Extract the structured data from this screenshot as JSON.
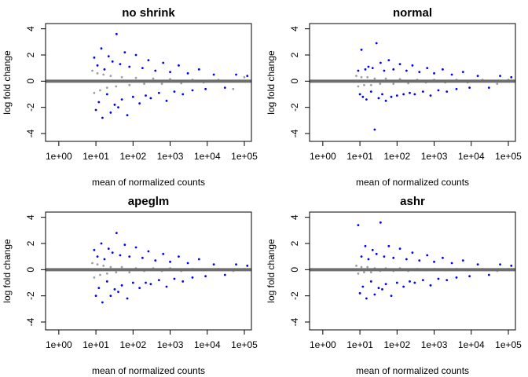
{
  "chart_data": [
    {
      "type": "scatter",
      "title": "no shrink",
      "xlabel": "mean of normalized counts",
      "ylabel": "log fold change",
      "xlog": true,
      "xlim": [
        0.44,
        155000
      ],
      "ylim": [
        -4.6,
        4.4
      ],
      "xticks": [
        {
          "value": 1,
          "label": "1e+00"
        },
        {
          "value": 10,
          "label": "1e+01"
        },
        {
          "value": 100,
          "label": "1e+02"
        },
        {
          "value": 1000,
          "label": "1e+03"
        },
        {
          "value": 10000,
          "label": "1e+04"
        },
        {
          "value": 100000,
          "label": "1e+05"
        }
      ],
      "yticks": [
        -4,
        -2,
        0,
        2,
        4
      ],
      "hline": 0,
      "series": [
        {
          "color": "#a0a0a0",
          "x": [
            8,
            9,
            11,
            13,
            16,
            20,
            25,
            35,
            50,
            80,
            120,
            200,
            350,
            600,
            1000,
            2000,
            4000,
            8000,
            20000,
            50000,
            100000
          ],
          "values": [
            0.8,
            -0.9,
            0.6,
            -0.7,
            0.5,
            -0.5,
            0.4,
            -0.4,
            0.3,
            -0.3,
            0.25,
            -0.2,
            0.2,
            -0.2,
            0.15,
            -0.15,
            0.1,
            -0.1,
            0.1,
            -0.6,
            0.3
          ]
        },
        {
          "color": "#0000ff",
          "x": [
            9,
            10,
            11,
            12,
            14,
            15,
            17,
            20,
            22,
            25,
            28,
            32,
            36,
            40,
            45,
            50,
            60,
            70,
            80,
            100,
            120,
            150,
            180,
            220,
            260,
            300,
            400,
            500,
            650,
            800,
            1000,
            1300,
            1700,
            2200,
            3000,
            4000,
            6000,
            9000,
            15000,
            30000,
            60000,
            120000
          ],
          "values": [
            1.8,
            -2.2,
            1.2,
            -1.6,
            2.5,
            -2.8,
            0.9,
            -1.0,
            1.9,
            -2.4,
            1.5,
            -1.8,
            3.6,
            -2.0,
            1.3,
            -1.4,
            2.2,
            -2.6,
            1.1,
            -1.2,
            2.0,
            -1.7,
            1.0,
            -1.1,
            1.6,
            -1.3,
            0.8,
            -0.9,
            1.4,
            -1.5,
            0.7,
            -0.8,
            1.2,
            -1.0,
            0.6,
            -0.7,
            0.9,
            -0.6,
            0.5,
            -0.5,
            0.5,
            0.4
          ]
        }
      ]
    },
    {
      "type": "scatter",
      "title": "normal",
      "xlabel": "mean of normalized counts",
      "ylabel": "log fold change",
      "xlog": true,
      "xlim": [
        0.44,
        155000
      ],
      "ylim": [
        -4.6,
        4.4
      ],
      "xticks": [
        {
          "value": 1,
          "label": "1e+00"
        },
        {
          "value": 10,
          "label": "1e+01"
        },
        {
          "value": 100,
          "label": "1e+02"
        },
        {
          "value": 1000,
          "label": "1e+03"
        },
        {
          "value": 10000,
          "label": "1e+04"
        },
        {
          "value": 100000,
          "label": "1e+05"
        }
      ],
      "yticks": [
        -4,
        -2,
        0,
        2,
        4
      ],
      "hline": 0,
      "series": [
        {
          "color": "#a0a0a0",
          "x": [
            8,
            9,
            11,
            13,
            16,
            20,
            25,
            35,
            50,
            80,
            120,
            200,
            350,
            600,
            1000,
            2000,
            4000,
            8000,
            20000,
            50000,
            100000
          ],
          "values": [
            0.4,
            -0.4,
            0.3,
            -0.3,
            0.3,
            -0.3,
            0.2,
            -0.2,
            0.2,
            -0.2,
            0.15,
            -0.15,
            0.1,
            -0.1,
            0.1,
            -0.1,
            0.1,
            -0.1,
            0.1,
            -0.2,
            0.1
          ]
        },
        {
          "color": "#0000ff",
          "x": [
            9,
            10,
            11,
            12,
            14,
            15,
            17,
            20,
            22,
            25,
            28,
            32,
            36,
            40,
            45,
            50,
            60,
            70,
            80,
            100,
            120,
            150,
            180,
            220,
            260,
            300,
            400,
            500,
            650,
            800,
            1000,
            1300,
            1700,
            2200,
            3000,
            4000,
            6000,
            9000,
            15000,
            30000,
            60000,
            120000
          ],
          "values": [
            0.8,
            -1.0,
            2.4,
            -1.2,
            0.9,
            -1.4,
            1.1,
            -0.8,
            1.0,
            -3.7,
            2.9,
            -1.3,
            1.4,
            -1.0,
            0.8,
            -1.5,
            1.6,
            -1.2,
            0.9,
            -1.1,
            1.3,
            -1.0,
            0.8,
            -0.9,
            1.2,
            -1.0,
            0.7,
            -0.8,
            1.0,
            -1.1,
            0.6,
            -0.7,
            0.9,
            -0.8,
            0.5,
            -0.6,
            0.7,
            -0.5,
            0.4,
            -0.5,
            0.4,
            0.3
          ]
        }
      ]
    },
    {
      "type": "scatter",
      "title": "apeglm",
      "xlabel": "mean of normalized counts",
      "ylabel": "log fold change",
      "xlog": true,
      "xlim": [
        0.44,
        155000
      ],
      "ylim": [
        -4.6,
        4.4
      ],
      "xticks": [
        {
          "value": 1,
          "label": "1e+00"
        },
        {
          "value": 10,
          "label": "1e+01"
        },
        {
          "value": 100,
          "label": "1e+02"
        },
        {
          "value": 1000,
          "label": "1e+03"
        },
        {
          "value": 10000,
          "label": "1e+04"
        },
        {
          "value": 100000,
          "label": "1e+05"
        }
      ],
      "yticks": [
        -4,
        -2,
        0,
        2,
        4
      ],
      "hline": 0,
      "series": [
        {
          "color": "#a0a0a0",
          "x": [
            8,
            9,
            11,
            13,
            16,
            20,
            25,
            35,
            50,
            80,
            120,
            200,
            350,
            600,
            1000,
            2000,
            4000,
            8000,
            20000,
            50000,
            100000
          ],
          "values": [
            0.5,
            -0.6,
            0.4,
            -0.4,
            0.3,
            -0.3,
            0.2,
            -0.2,
            0.2,
            -0.2,
            0.1,
            -0.1,
            0.1,
            -0.1,
            0.1,
            -0.1,
            0.05,
            -0.05,
            0.05,
            -0.1,
            0.05
          ]
        },
        {
          "color": "#0000ff",
          "x": [
            9,
            10,
            11,
            12,
            14,
            15,
            17,
            20,
            22,
            25,
            28,
            32,
            36,
            40,
            45,
            50,
            60,
            70,
            80,
            100,
            120,
            150,
            180,
            220,
            260,
            300,
            400,
            500,
            650,
            800,
            1000,
            1300,
            1700,
            2200,
            3000,
            4000,
            6000,
            9000,
            15000,
            30000,
            60000,
            120000
          ],
          "values": [
            1.5,
            -2.0,
            1.0,
            -1.4,
            2.0,
            -2.5,
            0.8,
            -0.9,
            1.6,
            -2.0,
            1.3,
            -1.5,
            2.8,
            -1.7,
            1.1,
            -1.2,
            1.9,
            -2.2,
            1.0,
            -1.0,
            1.7,
            -1.4,
            0.9,
            -1.0,
            1.4,
            -1.1,
            0.7,
            -0.8,
            1.2,
            -1.3,
            0.6,
            -0.7,
            1.0,
            -0.9,
            0.5,
            -0.6,
            0.8,
            -0.5,
            0.4,
            -0.4,
            0.4,
            0.3
          ]
        }
      ]
    },
    {
      "type": "scatter",
      "title": "ashr",
      "xlabel": "mean of normalized counts",
      "ylabel": "log fold change",
      "xlog": true,
      "xlim": [
        0.44,
        155000
      ],
      "ylim": [
        -4.6,
        4.4
      ],
      "xticks": [
        {
          "value": 1,
          "label": "1e+00"
        },
        {
          "value": 10,
          "label": "1e+01"
        },
        {
          "value": 100,
          "label": "1e+02"
        },
        {
          "value": 1000,
          "label": "1e+03"
        },
        {
          "value": 10000,
          "label": "1e+04"
        },
        {
          "value": 100000,
          "label": "1e+05"
        }
      ],
      "yticks": [
        -4,
        -2,
        0,
        2,
        4
      ],
      "hline": 0,
      "series": [
        {
          "color": "#a0a0a0",
          "x": [
            8,
            9,
            11,
            13,
            16,
            20,
            25,
            35,
            50,
            80,
            120,
            200,
            350,
            600,
            1000,
            2000,
            4000,
            8000,
            20000,
            50000,
            100000
          ],
          "values": [
            0.3,
            -0.3,
            0.2,
            -0.2,
            0.2,
            -0.2,
            0.1,
            -0.1,
            0.1,
            -0.1,
            0.1,
            -0.1,
            0.05,
            -0.05,
            0.05,
            -0.05,
            0.05,
            -0.05,
            0.05,
            -0.1,
            0.05
          ]
        },
        {
          "color": "#0000ff",
          "x": [
            9,
            10,
            11,
            12,
            14,
            15,
            17,
            20,
            22,
            25,
            28,
            32,
            36,
            40,
            45,
            50,
            60,
            70,
            80,
            100,
            120,
            150,
            180,
            220,
            260,
            300,
            400,
            500,
            650,
            800,
            1000,
            1300,
            1700,
            2200,
            3000,
            4000,
            6000,
            9000,
            15000,
            30000,
            60000,
            120000
          ],
          "values": [
            3.4,
            -1.8,
            1.0,
            -1.3,
            1.8,
            -2.2,
            0.8,
            -0.9,
            1.5,
            -1.9,
            1.2,
            -1.4,
            3.6,
            -1.5,
            1.0,
            -1.1,
            1.8,
            -2.0,
            0.9,
            -1.0,
            1.6,
            -1.3,
            0.8,
            -0.9,
            1.3,
            -1.0,
            0.7,
            -0.8,
            1.1,
            -1.2,
            0.6,
            -0.7,
            0.9,
            -0.8,
            0.5,
            -0.6,
            0.7,
            -0.5,
            0.4,
            -0.4,
            0.4,
            0.3
          ]
        }
      ]
    }
  ]
}
